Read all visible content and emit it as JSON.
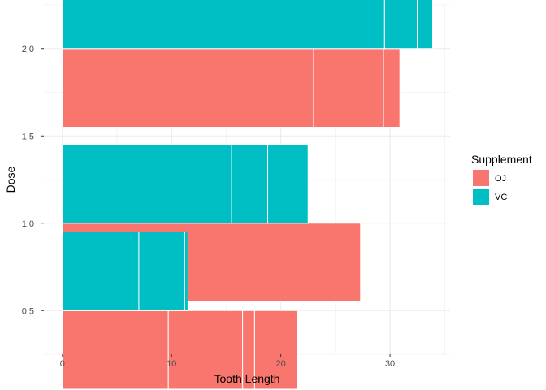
{
  "chart_data": {
    "type": "bar",
    "orientation": "horizontal",
    "stacked": true,
    "dodge": true,
    "xlabel": "Tooth Length",
    "ylabel": "Dose",
    "xlim": [
      -1.7,
      35.5
    ],
    "ylim": [
      0.25,
      2.25
    ],
    "x_ticks": [
      0,
      10,
      20,
      30
    ],
    "x_tick_labels": [
      "0",
      "10",
      "20",
      "30"
    ],
    "y_ticks": [
      0.5,
      1.0,
      1.5,
      2.0
    ],
    "y_tick_labels": [
      "0.5",
      "1.0",
      "1.5",
      "2.0"
    ],
    "grid": true,
    "legend": {
      "title": "Supplement",
      "position": "right",
      "entries": [
        {
          "name": "OJ",
          "color": "#F8766D"
        },
        {
          "name": "VC",
          "color": "#00BFC4"
        }
      ]
    },
    "bar_width": 0.45,
    "bar_outline_color": "#ffffff",
    "series": [
      {
        "name": "OJ",
        "color": "#F8766D",
        "groups": [
          {
            "dose": 0.5,
            "segments": [
              9.7,
              6.8,
              1.1,
              3.9
            ]
          },
          {
            "dose": 1.0,
            "segments": [
              27.3
            ]
          },
          {
            "dose": 2.0,
            "segments": [
              23.0,
              6.4,
              1.5
            ]
          }
        ]
      },
      {
        "name": "VC",
        "color": "#00BFC4",
        "groups": [
          {
            "dose": 0.5,
            "segments": [
              7.0,
              4.2,
              0.3
            ]
          },
          {
            "dose": 1.0,
            "segments": [
              15.5,
              3.3,
              3.7
            ]
          },
          {
            "dose": 2.0,
            "segments": [
              29.5,
              3.0,
              1.4
            ]
          }
        ]
      }
    ]
  }
}
